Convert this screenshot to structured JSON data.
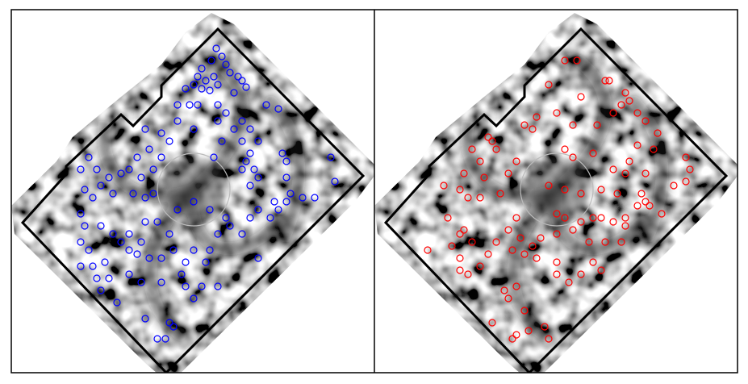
{
  "chart_data": [
    {
      "type": "scatter",
      "color": "blue",
      "xlim": [
        0,
        450
      ],
      "ylim": [
        0,
        450
      ],
      "x": [
        254,
        261,
        248,
        266,
        236,
        231,
        241,
        251,
        226,
        236,
        246,
        256,
        271,
        281,
        286,
        291,
        276,
        216,
        221,
        231,
        206,
        256,
        266,
        286,
        276,
        296,
        306,
        286,
        296,
        291,
        301,
        286,
        306,
        296,
        316,
        331,
        336,
        341,
        341,
        346,
        361,
        376,
        396,
        401,
        256,
        261,
        251,
        226,
        206,
        186,
        196,
        166,
        171,
        156,
        146,
        161,
        176,
        136,
        126,
        121,
        106,
        96,
        86,
        91,
        101,
        111,
        151,
        166,
        176,
        186,
        86,
        91,
        86,
        96,
        111,
        126,
        136,
        146,
        161,
        166,
        181,
        196,
        201,
        186,
        171,
        156,
        116,
        101,
        86,
        106,
        121,
        111,
        131,
        146,
        161,
        186,
        211,
        216,
        226,
        241,
        246,
        256,
        271,
        286,
        296,
        306,
        321,
        331,
        326,
        341,
        306,
        256,
        236,
        216,
        226,
        196,
        201,
        181,
        191,
        166,
        146,
        206,
        226,
        246,
        266
      ],
      "y": [
        402,
        392,
        387,
        382,
        377,
        367,
        362,
        367,
        357,
        352,
        350,
        357,
        372,
        367,
        362,
        354,
        347,
        352,
        332,
        332,
        332,
        332,
        322,
        312,
        302,
        302,
        287,
        287,
        272,
        262,
        252,
        252,
        242,
        232,
        332,
        327,
        272,
        262,
        242,
        222,
        217,
        217,
        267,
        237,
        312,
        287,
        267,
        302,
        312,
        297,
        287,
        302,
        277,
        267,
        252,
        242,
        252,
        247,
        222,
        242,
        252,
        267,
        252,
        227,
        217,
        232,
        222,
        217,
        222,
        267,
        197,
        182,
        162,
        152,
        182,
        172,
        162,
        152,
        162,
        187,
        187,
        172,
        152,
        142,
        142,
        147,
        137,
        132,
        132,
        117,
        117,
        102,
        87,
        122,
        112,
        112,
        122,
        137,
        152,
        137,
        152,
        172,
        182,
        172,
        192,
        202,
        192,
        202,
        212,
        212,
        142,
        107,
        107,
        107,
        92,
        62,
        57,
        42,
        42,
        67,
        172,
        202,
        212,
        202,
        192
      ]
    },
    {
      "type": "scatter",
      "color": "red",
      "xlim": [
        0,
        450
      ],
      "ylim": [
        0,
        450
      ],
      "x": [
        236,
        251,
        286,
        291,
        216,
        256,
        311,
        316,
        306,
        296,
        226,
        201,
        186,
        196,
        246,
        276,
        326,
        336,
        351,
        346,
        326,
        316,
        311,
        296,
        271,
        246,
        236,
        141,
        146,
        151,
        121,
        131,
        166,
        176,
        136,
        111,
        86,
        106,
        116,
        131,
        156,
        216,
        236,
        256,
        281,
        301,
        331,
        336,
        326,
        311,
        296,
        281,
        271,
        256,
        236,
        226,
        176,
        166,
        181,
        196,
        186,
        171,
        151,
        141,
        131,
        106,
        96,
        106,
        91,
        66,
        111,
        121,
        206,
        226,
        246,
        266,
        286,
        306,
        311,
        356,
        341,
        371,
        386,
        391,
        386,
        336,
        281,
        256,
        241,
        226,
        201,
        176,
        161,
        166,
        186,
        146,
        176,
        171,
        191,
        211,
        216,
        226,
        271,
        116,
        106
      ],
      "y": [
        387,
        387,
        362,
        362,
        357,
        342,
        347,
        337,
        332,
        322,
        322,
        317,
        307,
        302,
        307,
        307,
        322,
        312,
        297,
        277,
        282,
        262,
        247,
        252,
        272,
        267,
        277,
        292,
        287,
        277,
        277,
        262,
        247,
        262,
        242,
        247,
        232,
        227,
        217,
        217,
        222,
        232,
        227,
        222,
        227,
        222,
        222,
        212,
        207,
        192,
        187,
        192,
        192,
        187,
        192,
        197,
        192,
        177,
        167,
        157,
        147,
        152,
        162,
        147,
        132,
        142,
        157,
        172,
        192,
        152,
        177,
        162,
        167,
        172,
        177,
        162,
        162,
        162,
        182,
        197,
        207,
        232,
        237,
        252,
        267,
        247,
        127,
        122,
        112,
        137,
        142,
        107,
        102,
        92,
        77,
        62,
        47,
        42,
        52,
        57,
        42,
        122,
        137,
        122,
        127
      ]
    }
  ]
}
